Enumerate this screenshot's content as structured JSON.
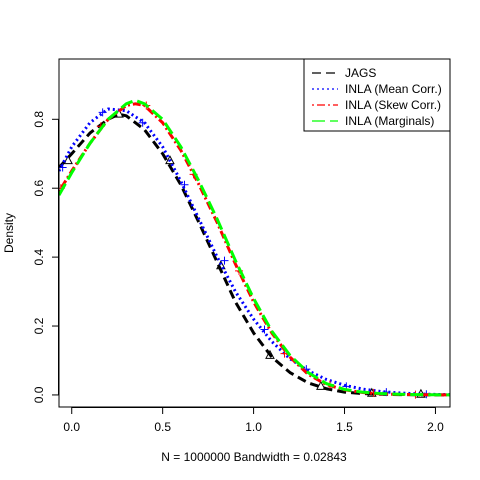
{
  "chart_data": {
    "type": "line",
    "title": "",
    "xlabel": "N = 1000000   Bandwidth = 0.02843",
    "ylabel": "Density",
    "xlim": [
      -0.07,
      2.08
    ],
    "ylim": [
      -0.035,
      0.975
    ],
    "x_ticks": [
      0.0,
      0.5,
      1.0,
      1.5,
      2.0
    ],
    "x_tick_labels": [
      "0.0",
      "0.5",
      "1.0",
      "1.5",
      "2.0"
    ],
    "y_ticks": [
      0.0,
      0.2,
      0.4,
      0.6,
      0.8
    ],
    "y_tick_labels": [
      "0.0",
      "0.2",
      "0.4",
      "0.6",
      "0.8"
    ],
    "grid": false,
    "legend_position": "top-right",
    "series": [
      {
        "name": "JAGS",
        "color": "#000000",
        "line_style": "dashed",
        "marker": "triangle",
        "x": [
          -0.07,
          0.0,
          0.1,
          0.2,
          0.26,
          0.3,
          0.4,
          0.5,
          0.6,
          0.7,
          0.8,
          0.9,
          1.0,
          1.1,
          1.2,
          1.3,
          1.4,
          1.5,
          1.6,
          1.7,
          1.8,
          1.9,
          2.0,
          2.08
        ],
        "y": [
          0.66,
          0.7,
          0.76,
          0.8,
          0.815,
          0.81,
          0.77,
          0.7,
          0.61,
          0.5,
          0.385,
          0.27,
          0.18,
          0.11,
          0.065,
          0.035,
          0.018,
          0.008,
          0.004,
          0.002,
          0.001,
          0.0005,
          0.0002,
          0.0001
        ],
        "marker_x": [
          -0.02,
          0.26,
          0.54,
          0.82,
          1.09,
          1.37,
          1.65,
          1.92
        ],
        "marker_y": [
          0.68,
          0.815,
          0.68,
          0.375,
          0.115,
          0.025,
          0.005,
          0.002
        ]
      },
      {
        "name": "INLA (Mean Corr.)",
        "color": "#0000ff",
        "line_style": "dotted",
        "marker": "plus",
        "x": [
          -0.07,
          0.0,
          0.1,
          0.2,
          0.3,
          0.4,
          0.5,
          0.6,
          0.7,
          0.8,
          0.9,
          1.0,
          1.1,
          1.2,
          1.3,
          1.4,
          1.5,
          1.6,
          1.7,
          1.8,
          1.9,
          2.0,
          2.08
        ],
        "y": [
          0.65,
          0.72,
          0.79,
          0.83,
          0.825,
          0.79,
          0.72,
          0.62,
          0.51,
          0.4,
          0.3,
          0.22,
          0.155,
          0.105,
          0.07,
          0.045,
          0.028,
          0.017,
          0.01,
          0.006,
          0.003,
          0.0015,
          0.001
        ],
        "marker_x": [
          -0.05,
          0.17,
          0.39,
          0.62,
          0.84,
          1.06,
          1.29,
          1.51,
          1.73,
          1.95
        ],
        "marker_y": [
          0.66,
          0.82,
          0.79,
          0.61,
          0.39,
          0.19,
          0.075,
          0.025,
          0.008,
          0.002
        ]
      },
      {
        "name": "INLA (Skew Corr.)",
        "color": "#ff0000",
        "line_style": "dotdash",
        "marker": "plus",
        "x": [
          -0.07,
          0.0,
          0.1,
          0.2,
          0.3,
          0.35,
          0.4,
          0.5,
          0.6,
          0.7,
          0.8,
          0.9,
          1.0,
          1.1,
          1.2,
          1.3,
          1.4,
          1.5,
          1.6,
          1.7,
          1.8,
          1.9,
          2.0,
          2.08
        ],
        "y": [
          0.59,
          0.65,
          0.73,
          0.8,
          0.84,
          0.845,
          0.84,
          0.79,
          0.71,
          0.61,
          0.5,
          0.38,
          0.27,
          0.18,
          0.11,
          0.06,
          0.03,
          0.015,
          0.007,
          0.003,
          0.0015,
          0.0007,
          0.0003,
          0.0001
        ],
        "marker_x": [
          -0.06,
          0.16,
          0.41,
          0.67,
          0.92,
          1.17,
          1.42,
          1.66,
          1.89
        ],
        "marker_y": [
          0.6,
          0.78,
          0.84,
          0.64,
          0.36,
          0.12,
          0.03,
          0.006,
          0.001
        ]
      },
      {
        "name": "INLA (Marginals)",
        "color": "#00ff00",
        "line_style": "longdash",
        "marker": "none",
        "x": [
          -0.07,
          0.0,
          0.1,
          0.2,
          0.3,
          0.35,
          0.4,
          0.5,
          0.6,
          0.7,
          0.8,
          0.9,
          1.0,
          1.1,
          1.2,
          1.3,
          1.4,
          1.5,
          1.6,
          1.7,
          1.8,
          1.9,
          2.0,
          2.08
        ],
        "y": [
          0.58,
          0.645,
          0.73,
          0.8,
          0.845,
          0.855,
          0.845,
          0.8,
          0.72,
          0.62,
          0.51,
          0.39,
          0.28,
          0.185,
          0.115,
          0.065,
          0.033,
          0.016,
          0.008,
          0.004,
          0.002,
          0.001,
          0.0004,
          0.0002
        ]
      }
    ]
  }
}
